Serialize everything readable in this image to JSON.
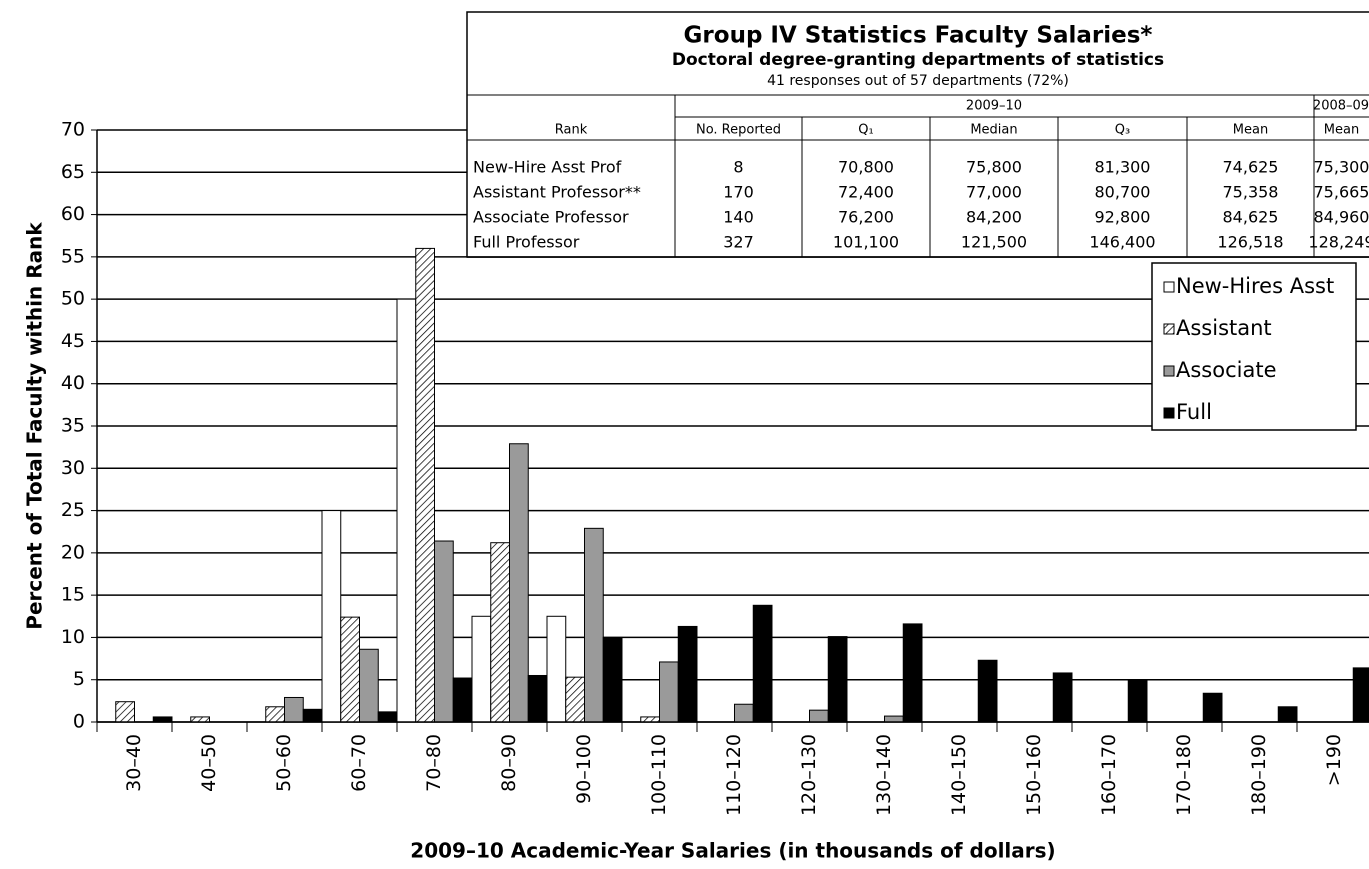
{
  "chart_data": {
    "type": "bar",
    "xlabel": "2009–10 Academic-Year Salaries (in thousands of dollars)",
    "ylabel": "Percent of Total Faculty within Rank",
    "categories": [
      "30–40",
      "40–50",
      "50–60",
      "60–70",
      "70–80",
      "80–90",
      "90–100",
      "100–110",
      "110–120",
      "120–130",
      "130–140",
      "140–150",
      "150–160",
      "160–170",
      "170–180",
      "180–190",
      ">190"
    ],
    "series": [
      {
        "name": "New-Hires Asst",
        "color": "#ffffff",
        "values": [
          0,
          0,
          0,
          25,
          50,
          12.5,
          12.5,
          0,
          0,
          0,
          0,
          0,
          0,
          0,
          0,
          0,
          0
        ]
      },
      {
        "name": "Assistant",
        "color": "#ffffff",
        "pattern": "hatch",
        "values": [
          2.4,
          0.6,
          1.8,
          12.4,
          56,
          21.2,
          5.3,
          0.6,
          0,
          0,
          0,
          0,
          0,
          0,
          0,
          0,
          0
        ]
      },
      {
        "name": "Associate",
        "color": "#9a9a9a",
        "values": [
          0,
          0,
          2.9,
          8.6,
          21.4,
          32.9,
          22.9,
          7.1,
          2.1,
          1.4,
          0.7,
          0,
          0,
          0,
          0,
          0,
          0
        ]
      },
      {
        "name": "Full",
        "color": "#000000",
        "values": [
          0.6,
          0,
          1.5,
          1.2,
          5.2,
          5.5,
          10,
          11.3,
          13.8,
          10.1,
          11.6,
          7.3,
          5.8,
          4.9,
          3.4,
          1.8,
          6.4
        ]
      }
    ],
    "ylim": [
      0,
      70
    ],
    "yticks": [
      0,
      5,
      10,
      15,
      20,
      25,
      30,
      35,
      40,
      45,
      50,
      55,
      60,
      65,
      70
    ],
    "grid": true,
    "legend": "upper right"
  },
  "table": {
    "title": "Group IV Statistics Faculty Salaries*",
    "subtitle": "Doctoral degree-granting departments of statistics",
    "note": "41 responses out of 57 departments (72%)",
    "group_headers": [
      "2009–10",
      "2008–09"
    ],
    "columns": [
      "Rank",
      "No. Reported",
      "Q₁",
      "Median",
      "Q₃",
      "Mean",
      "Mean"
    ],
    "rows": [
      [
        "New-Hire Asst Prof",
        "8",
        "70,800",
        "75,800",
        "81,300",
        "74,625",
        "75,300"
      ],
      [
        "Assistant Professor**",
        "170",
        "72,400",
        "77,000",
        "80,700",
        "75,358",
        "75,665"
      ],
      [
        "Associate Professor",
        "140",
        "76,200",
        "84,200",
        "92,800",
        "84,625",
        "84,960"
      ],
      [
        "Full Professor",
        "327",
        "101,100",
        "121,500",
        "146,400",
        "126,518",
        "128,249"
      ]
    ]
  }
}
